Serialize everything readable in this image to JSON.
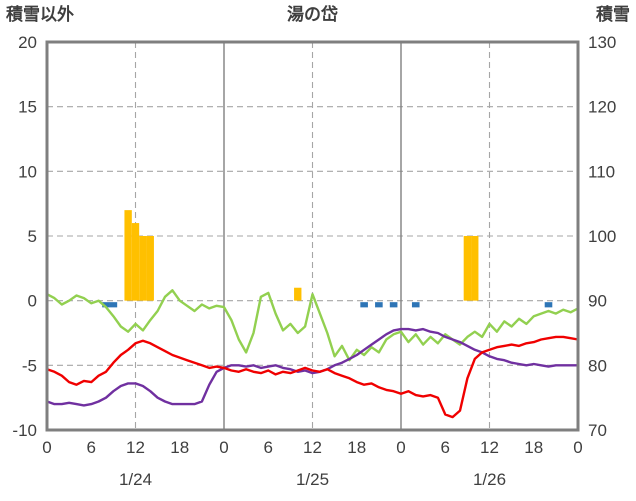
{
  "chart_data": {
    "type": "line",
    "title": "湯の岱",
    "left_axis": {
      "label": "積雪以外",
      "min": -10,
      "max": 20,
      "ticks": [
        20,
        15,
        10,
        5,
        0,
        -5,
        -10
      ]
    },
    "right_axis": {
      "label": "積雪",
      "min": 70,
      "max": 130,
      "ticks": [
        130,
        120,
        110,
        100,
        90,
        80,
        70
      ]
    },
    "x_axis": {
      "hours_total": 72,
      "tick_step": 6,
      "tick_labels": [
        "0",
        "6",
        "12",
        "18",
        "0",
        "6",
        "12",
        "18",
        "0",
        "6",
        "12",
        "18",
        "0"
      ],
      "day_labels": [
        "1/24",
        "1/25",
        "1/26"
      ],
      "day_label_hours": [
        12,
        36,
        60
      ]
    },
    "grid": {
      "horizontal": "dashed",
      "day_separators": "solid",
      "half_day_separators": "dashed"
    },
    "series": [
      {
        "name": "green-line",
        "axis": "right",
        "color": "#92d050",
        "values": [
          91,
          90.4,
          89.4,
          90,
          90.8,
          90.4,
          89.6,
          90,
          89,
          87.6,
          86,
          85.2,
          86.4,
          85.4,
          87,
          88.4,
          90.6,
          91.6,
          90,
          89.2,
          88.4,
          89.4,
          88.8,
          89.2,
          89,
          87,
          84,
          82,
          85,
          90.6,
          91.2,
          88,
          85.4,
          86.4,
          85,
          86,
          91,
          88,
          85,
          81.4,
          83,
          80.8,
          82.4,
          81.6,
          82.8,
          82,
          84,
          84.8,
          85.2,
          83.6,
          84.8,
          83.2,
          84.4,
          83.4,
          84.8,
          84,
          83.2,
          84.4,
          85.2,
          84.4,
          86.4,
          85.2,
          86.8,
          86,
          87.2,
          86.4,
          87.6,
          88,
          88.4,
          88,
          88.6,
          88.2,
          88.8
        ]
      },
      {
        "name": "purple-line",
        "axis": "left",
        "color": "#7030a0",
        "values": [
          -7.8,
          -8.0,
          -8.0,
          -7.9,
          -8.0,
          -8.1,
          -8.0,
          -7.8,
          -7.5,
          -7.0,
          -6.6,
          -6.4,
          -6.4,
          -6.6,
          -7.0,
          -7.5,
          -7.8,
          -8.0,
          -8.0,
          -8.0,
          -8.0,
          -7.8,
          -6.5,
          -5.5,
          -5.2,
          -5.0,
          -5.0,
          -5.1,
          -5.0,
          -5.2,
          -5.1,
          -5.0,
          -5.2,
          -5.3,
          -5.5,
          -5.4,
          -5.6,
          -5.5,
          -5.3,
          -5.0,
          -4.8,
          -4.5,
          -4.2,
          -3.8,
          -3.4,
          -3.0,
          -2.6,
          -2.3,
          -2.2,
          -2.2,
          -2.3,
          -2.2,
          -2.4,
          -2.5,
          -2.8,
          -3.0,
          -3.2,
          -3.5,
          -3.8,
          -4.0,
          -4.3,
          -4.5,
          -4.6,
          -4.8,
          -4.9,
          -5.0,
          -4.9,
          -5.0,
          -5.1,
          -5.0,
          -5.0,
          -5.0,
          -5.0
        ]
      },
      {
        "name": "red-line",
        "axis": "left",
        "color": "#f00000",
        "values": [
          -5.3,
          -5.5,
          -5.8,
          -6.3,
          -6.5,
          -6.2,
          -6.3,
          -5.8,
          -5.5,
          -4.8,
          -4.2,
          -3.8,
          -3.3,
          -3.1,
          -3.3,
          -3.6,
          -3.9,
          -4.2,
          -4.4,
          -4.6,
          -4.8,
          -5.0,
          -5.2,
          -5.1,
          -5.2,
          -5.4,
          -5.5,
          -5.3,
          -5.5,
          -5.6,
          -5.4,
          -5.7,
          -5.5,
          -5.6,
          -5.4,
          -5.2,
          -5.4,
          -5.5,
          -5.3,
          -5.6,
          -5.8,
          -6.0,
          -6.3,
          -6.5,
          -6.4,
          -6.7,
          -6.9,
          -7.0,
          -7.2,
          -7.0,
          -7.3,
          -7.4,
          -7.3,
          -7.5,
          -8.8,
          -9.0,
          -8.5,
          -6.0,
          -4.5,
          -4.0,
          -3.8,
          -3.6,
          -3.5,
          -3.4,
          -3.5,
          -3.3,
          -3.2,
          -3.0,
          -2.9,
          -2.8,
          -2.8,
          -2.9,
          -3.0
        ]
      }
    ],
    "bars": {
      "name": "orange-bars",
      "axis": "left",
      "color": "#ffc000",
      "points": [
        {
          "hour": 11,
          "value": 7
        },
        {
          "hour": 12,
          "value": 6
        },
        {
          "hour": 13,
          "value": 5
        },
        {
          "hour": 14,
          "value": 5
        },
        {
          "hour": 34,
          "value": 1
        },
        {
          "hour": 57,
          "value": 5
        },
        {
          "hour": 58,
          "value": 5
        }
      ]
    },
    "markers": {
      "name": "blue-markers",
      "color": "#2e75b6",
      "hours": [
        8,
        9,
        43,
        45,
        47,
        50,
        68
      ]
    }
  }
}
